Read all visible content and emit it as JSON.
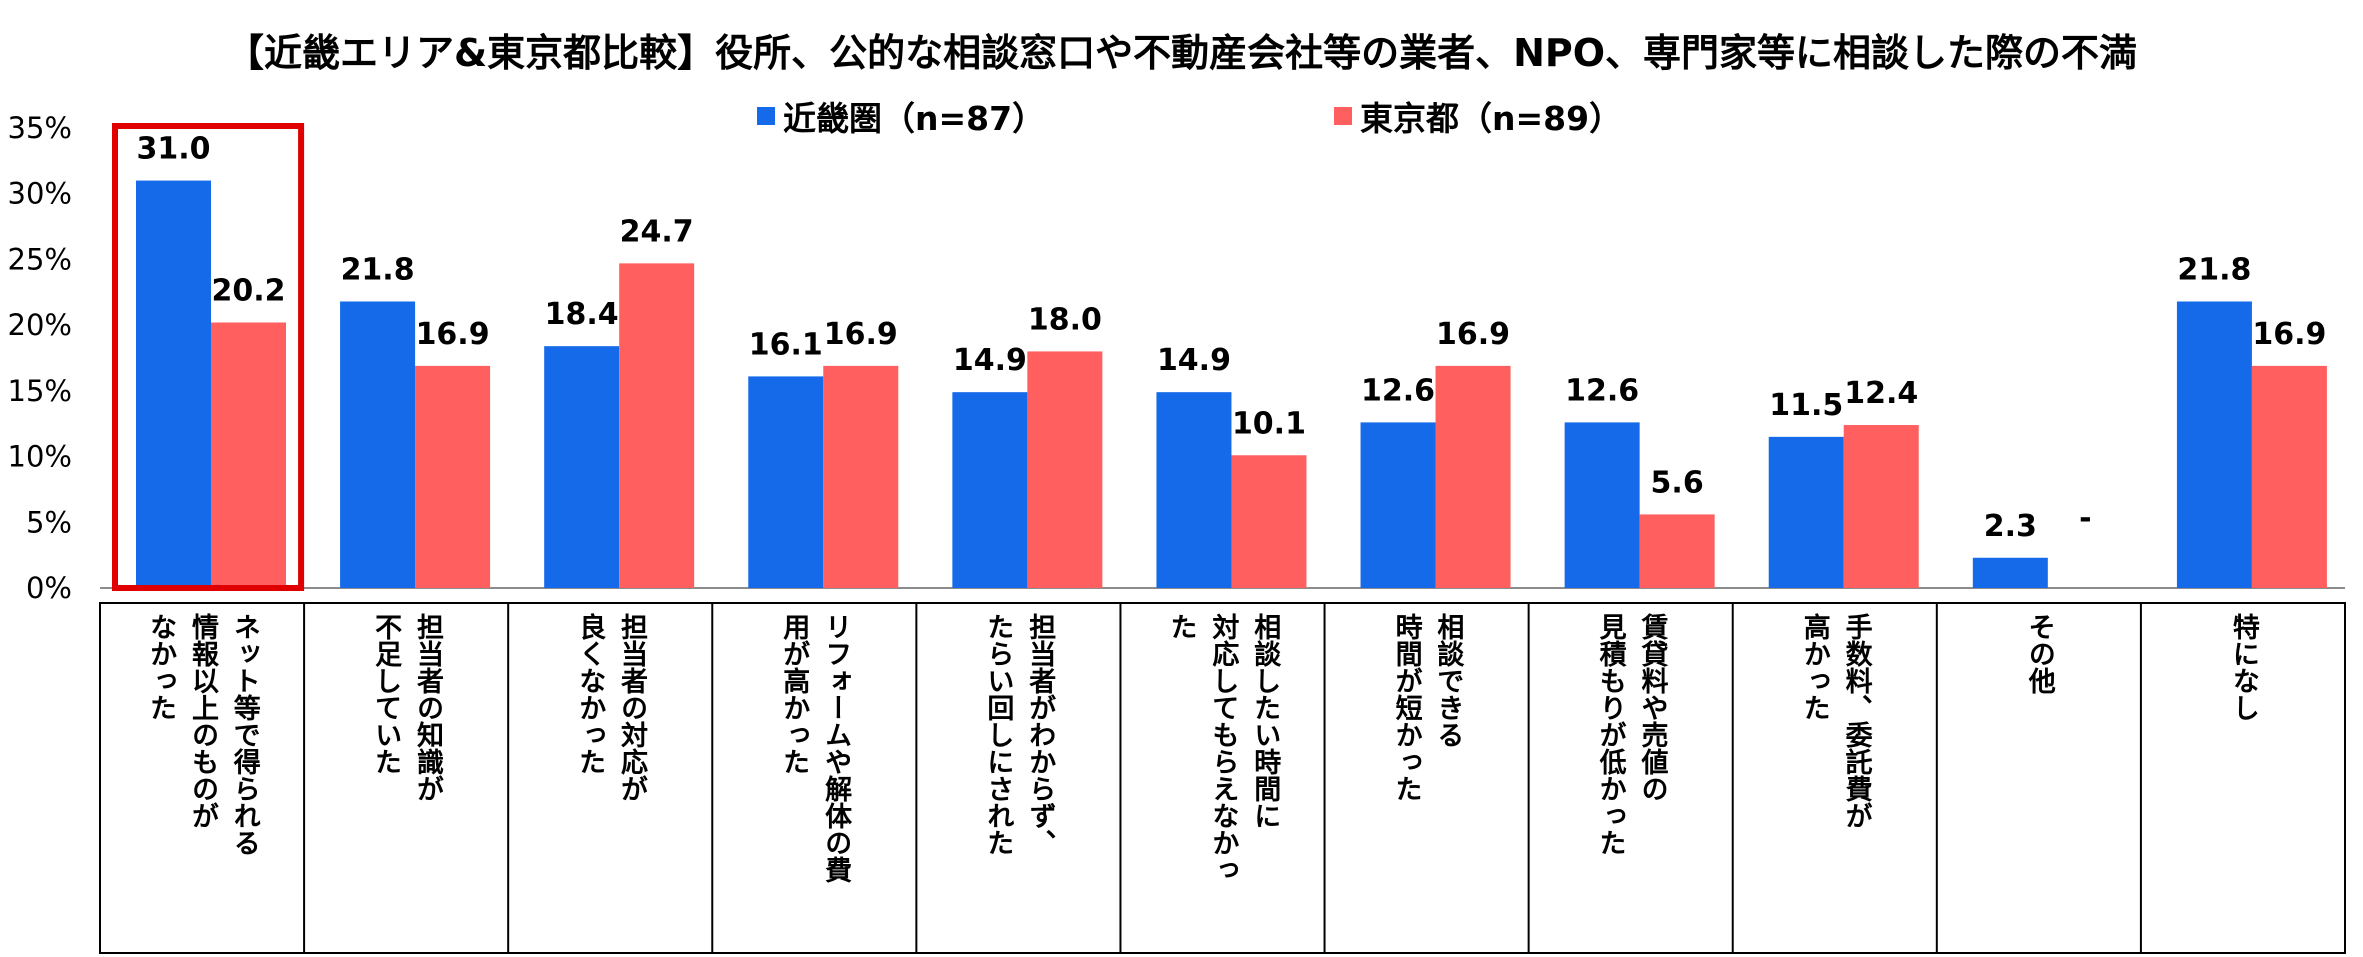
{
  "chart_data": {
    "type": "bar",
    "title": "【近畿エリア&東京都比較】役所、公的な相談窓口や不動産会社等の業者、NPO、専門家等に相談した際の不満",
    "series": [
      {
        "name": "近畿圏（n=87）",
        "color": "#146AE8",
        "values": [
          31.0,
          21.8,
          18.4,
          16.1,
          14.9,
          14.9,
          12.6,
          12.6,
          11.5,
          2.3,
          21.8
        ],
        "labels": [
          "31.0",
          "21.8",
          "18.4",
          "16.1",
          "14.9",
          "14.9",
          "12.6",
          "12.6",
          "11.5",
          "2.3",
          "21.8"
        ]
      },
      {
        "name": "東京都（n=89）",
        "color": "#FF5F5F",
        "values": [
          20.2,
          16.9,
          24.7,
          16.9,
          18.0,
          10.1,
          16.9,
          5.6,
          12.4,
          0,
          16.9
        ],
        "labels": [
          "20.2",
          "16.9",
          "24.7",
          "16.9",
          "18.0",
          "10.1",
          "16.9",
          "5.6",
          "12.4",
          "-",
          "16.9"
        ]
      }
    ],
    "categories": [
      [
        "ネット等で得られる",
        "情報以上のものが",
        "なかった"
      ],
      [
        "担当者の知識が",
        "不足していた"
      ],
      [
        "担当者の対応が",
        "良くなかった"
      ],
      [
        "リフォームや解体の費",
        "用が高かった"
      ],
      [
        "担当者がわからず、",
        "たらい回しにされた"
      ],
      [
        "相談したい時間に",
        "対応してもらえなかっ",
        "た"
      ],
      [
        "相談できる",
        "時間が短かった"
      ],
      [
        "賃貸料や売値の",
        "見積もりが低かった"
      ],
      [
        "手数料、委託費が",
        "高かった"
      ],
      [
        "その他"
      ],
      [
        "特になし"
      ]
    ],
    "y_ticks": [
      "0%",
      "5%",
      "10%",
      "15%",
      "20%",
      "25%",
      "30%",
      "35%"
    ],
    "ylim": [
      0,
      35
    ],
    "highlight_index": 0,
    "highlight_color": "#E00000"
  }
}
